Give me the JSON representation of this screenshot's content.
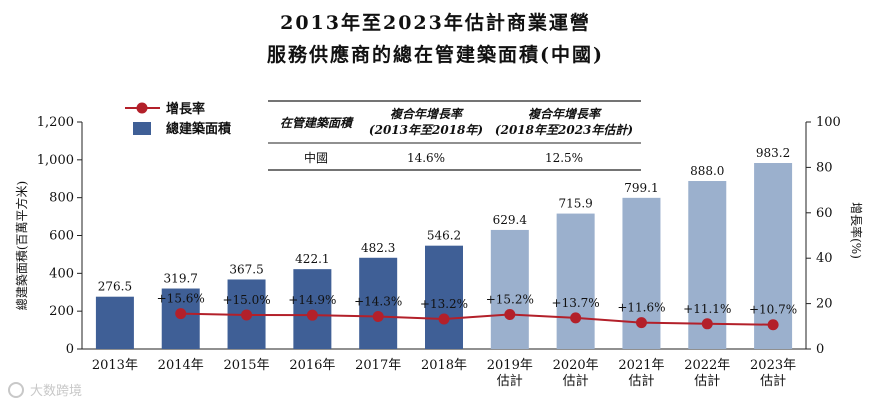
{
  "title_line1": "2013年至2023年估計商業運營",
  "title_line2": "服務供應商的總在管建築面積(中國)",
  "chart_data": {
    "type": "bar",
    "categories": [
      "2013年",
      "2014年",
      "2015年",
      "2016年",
      "2017年",
      "2018年",
      "2019年\n估計",
      "2020年\n估計",
      "2021年\n估計",
      "2022年\n估計",
      "2023年\n估計"
    ],
    "series": [
      {
        "name": "總建築面積",
        "type": "bar",
        "axis": "left",
        "values": [
          276.5,
          319.7,
          367.5,
          422.1,
          482.3,
          546.2,
          629.4,
          715.9,
          799.1,
          888.0,
          983.2
        ],
        "labels": [
          "276.5",
          "319.7",
          "367.5",
          "422.1",
          "482.3",
          "546.2",
          "629.4",
          "715.9",
          "799.1",
          "888.0",
          "983.2"
        ],
        "colors": [
          "#3f5f96",
          "#3f5f96",
          "#3f5f96",
          "#3f5f96",
          "#3f5f96",
          "#3f5f96",
          "#9bb0cd",
          "#9bb0cd",
          "#9bb0cd",
          "#9bb0cd",
          "#9bb0cd"
        ]
      },
      {
        "name": "增長率",
        "type": "line",
        "axis": "right",
        "values": [
          null,
          15.6,
          15.0,
          14.9,
          14.3,
          13.2,
          15.2,
          13.7,
          11.6,
          11.1,
          10.7
        ],
        "labels": [
          null,
          "+15.6%",
          "+15.0%",
          "+14.9%",
          "+14.3%",
          "+13.2%",
          "+15.2%",
          "+13.7%",
          "+11.6%",
          "+11.1%",
          "+10.7%"
        ],
        "color": "#b3202a"
      }
    ],
    "ylabel": "總建築面積(百萬平方米)",
    "y2label": "增長率(%)",
    "ylim": [
      0,
      1200
    ],
    "yticks": [
      "0",
      "200",
      "400",
      "600",
      "800",
      "1,000",
      "1,200"
    ],
    "y2lim": [
      0,
      100
    ],
    "y2ticks": [
      "0",
      "20",
      "40",
      "60",
      "80",
      "100"
    ],
    "legend": [
      "增長率",
      "總建築面積"
    ],
    "legend_position": "top-left"
  },
  "cagr_table": {
    "headers": [
      "在管建築面積",
      "複合年增長率\n(2013年至2018年)",
      "複合年增長率\n(2018年至2023年估計)"
    ],
    "row": [
      "中國",
      "14.6%",
      "12.5%"
    ]
  },
  "watermark": "大数跨境"
}
